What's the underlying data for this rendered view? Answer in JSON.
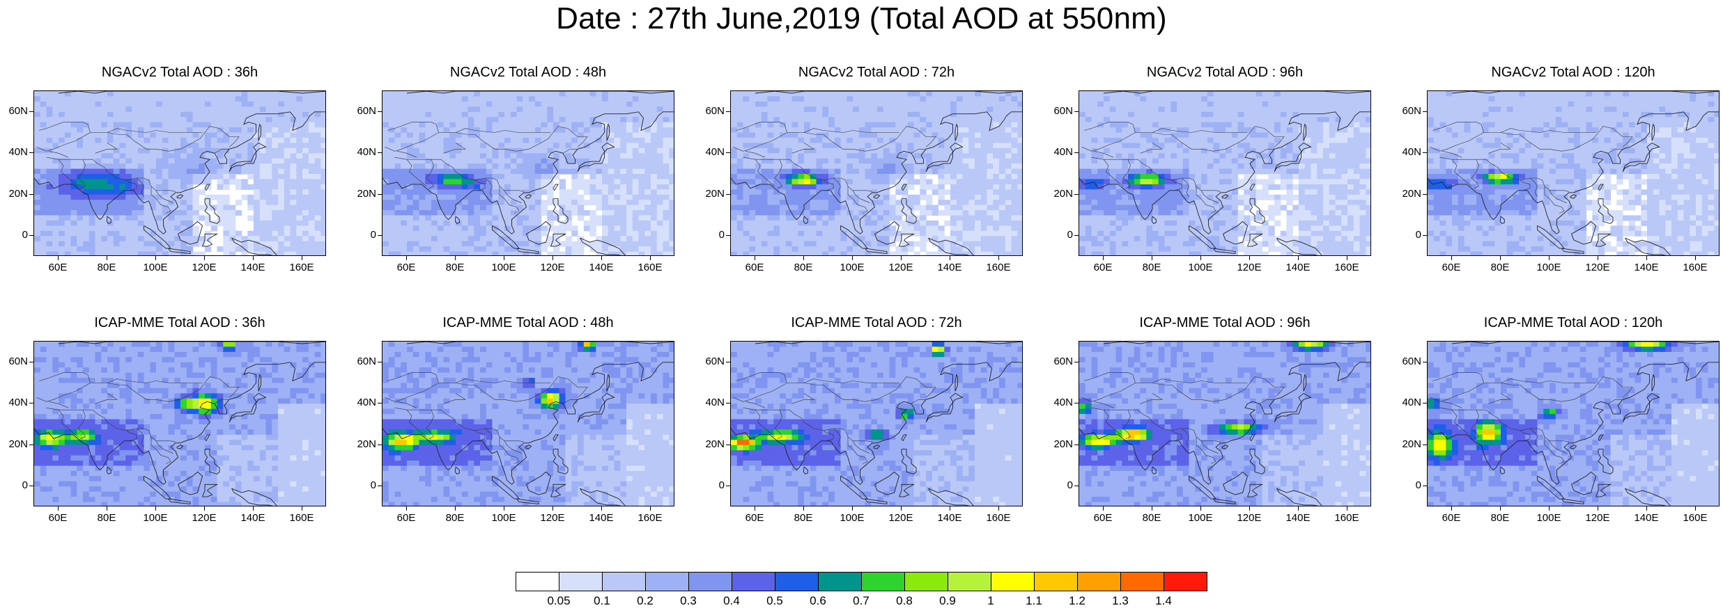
{
  "title": "Date : 27th June,2019 (Total AOD at 550nm)",
  "lat_ticks": [
    "60N",
    "40N",
    "20N",
    "0"
  ],
  "lat_values": [
    60,
    40,
    20,
    0
  ],
  "lon_ticks": [
    "60E",
    "80E",
    "100E",
    "120E",
    "140E",
    "160E"
  ],
  "lon_values": [
    60,
    80,
    100,
    120,
    140,
    160
  ],
  "map_extent": {
    "lon_min": 50,
    "lon_max": 170,
    "lat_min": -10,
    "lat_max": 70
  },
  "panels": [
    {
      "title": "NGACv2 Total AOD : 36h",
      "model": "NGACv2",
      "lead": "36h"
    },
    {
      "title": "NGACv2 Total AOD : 48h",
      "model": "NGACv2",
      "lead": "48h"
    },
    {
      "title": "NGACv2 Total AOD : 72h",
      "model": "NGACv2",
      "lead": "72h"
    },
    {
      "title": "NGACv2 Total AOD : 96h",
      "model": "NGACv2",
      "lead": "96h"
    },
    {
      "title": "NGACv2 Total AOD : 120h",
      "model": "NGACv2",
      "lead": "120h"
    },
    {
      "title": "ICAP-MME Total AOD : 36h",
      "model": "ICAP-MME",
      "lead": "36h"
    },
    {
      "title": "ICAP-MME Total AOD : 48h",
      "model": "ICAP-MME",
      "lead": "48h"
    },
    {
      "title": "ICAP-MME Total AOD : 72h",
      "model": "ICAP-MME",
      "lead": "72h"
    },
    {
      "title": "ICAP-MME Total AOD : 96h",
      "model": "ICAP-MME",
      "lead": "96h"
    },
    {
      "title": "ICAP-MME Total AOD : 120h",
      "model": "ICAP-MME",
      "lead": "120h"
    }
  ],
  "colorbar": {
    "labels": [
      "0.05",
      "0.1",
      "0.2",
      "0.3",
      "0.4",
      "0.5",
      "0.6",
      "0.7",
      "0.8",
      "0.9",
      "1",
      "1.1",
      "1.2",
      "1.3",
      "1.4"
    ],
    "colors": [
      "#ffffff",
      "#d6e0fb",
      "#b9c8f7",
      "#9db1f4",
      "#8095f0",
      "#5c63e8",
      "#1f5fe8",
      "#00948c",
      "#2ed32e",
      "#8ce90c",
      "#b6f23a",
      "#ffff00",
      "#ffc800",
      "#ff9f00",
      "#ff6a00",
      "#ff1a0a"
    ]
  }
}
